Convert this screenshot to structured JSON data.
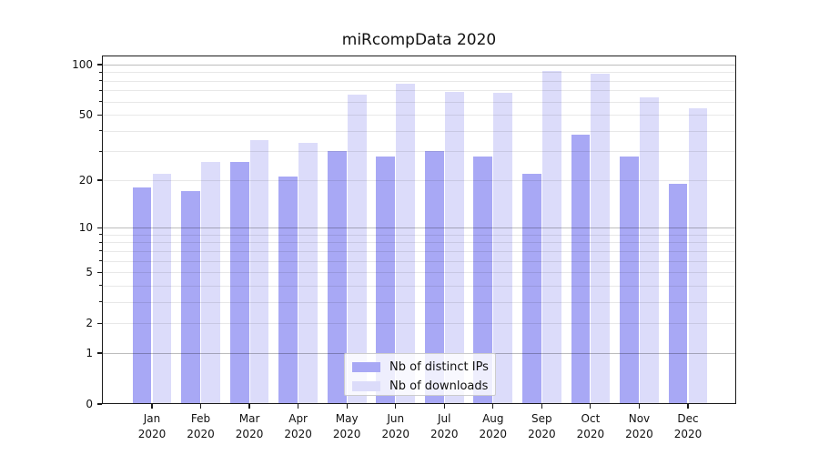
{
  "title": "miRcompData 2020",
  "chart_data": {
    "type": "bar",
    "title": "miRcompData 2020",
    "categories": [
      "Jan",
      "Feb",
      "Mar",
      "Apr",
      "May",
      "Jun",
      "Jul",
      "Aug",
      "Sep",
      "Oct",
      "Nov",
      "Dec"
    ],
    "category_year": "2020",
    "series": [
      {
        "name": "Nb of distinct IPs",
        "color": "#a8a8f5",
        "values": [
          18,
          17,
          26,
          21,
          30,
          28,
          30,
          28,
          22,
          38,
          28,
          19
        ]
      },
      {
        "name": "Nb of downloads",
        "color": "#dcdcfa",
        "values": [
          22,
          26,
          35,
          34,
          66,
          77,
          69,
          68,
          92,
          88,
          64,
          55
        ]
      }
    ],
    "yscale": "log10(1+y)",
    "ylim": [
      0,
      113
    ],
    "yticks_labeled": [
      100,
      50,
      20,
      10,
      5,
      2,
      1,
      0
    ],
    "yticks_minor": [
      90,
      80,
      70,
      60,
      40,
      30,
      9,
      8,
      7,
      6,
      4,
      3
    ],
    "grid": "both",
    "legend_position": "inside lower center"
  },
  "legend": {
    "items": [
      {
        "label": "Nb of distinct IPs"
      },
      {
        "label": "Nb of downloads"
      }
    ]
  }
}
